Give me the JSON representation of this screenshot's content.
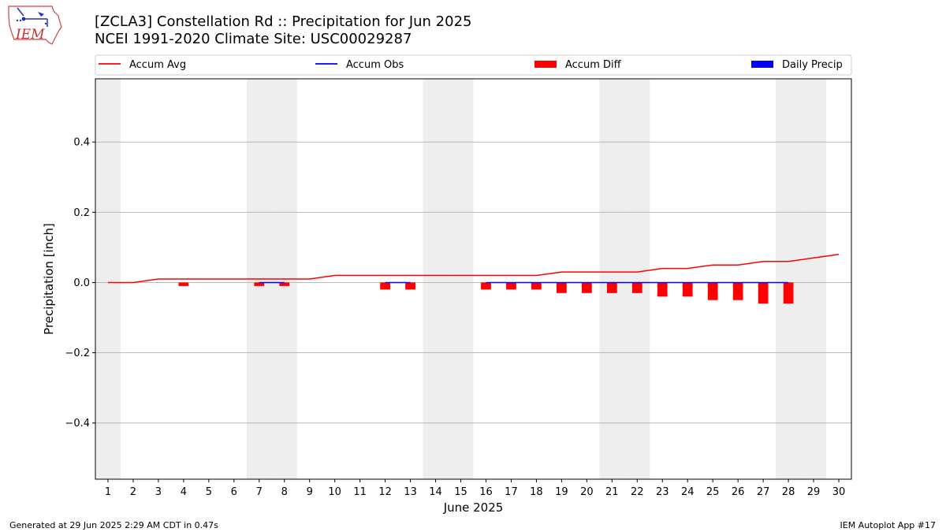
{
  "header": {
    "title_line1": "[ZCLA3] Constellation Rd :: Precipitation for Jun 2025",
    "title_line2": "NCEI 1991-2020 Climate Site: USC00029287",
    "logo_text": "IEM"
  },
  "footer": {
    "generated": "Generated at 29 Jun 2025 2:29 AM CDT in 0.47s",
    "app": "IEM Autoplot App #17"
  },
  "chart_data": {
    "type": "bar",
    "xlabel": "June 2025",
    "ylabel": "Precipitation [inch]",
    "xlim": [
      0.5,
      30.5
    ],
    "ylim": [
      -0.56,
      0.58
    ],
    "yticks": [
      -0.4,
      -0.2,
      0.0,
      0.2,
      0.4
    ],
    "ytick_labels": [
      "−0.4",
      "−0.2",
      "0.0",
      "0.2",
      "0.4"
    ],
    "x": [
      1,
      2,
      3,
      4,
      5,
      6,
      7,
      8,
      9,
      10,
      11,
      12,
      13,
      14,
      15,
      16,
      17,
      18,
      19,
      20,
      21,
      22,
      23,
      24,
      25,
      26,
      27,
      28,
      29,
      30
    ],
    "weekend_days": [
      1,
      7,
      8,
      14,
      15,
      21,
      22,
      28,
      29
    ],
    "grid": "y",
    "legend_placement": "top",
    "colors": {
      "accum_avg": "#ff0000",
      "accum_obs": "#0000ff",
      "accum_diff": "#ff0000",
      "daily_precip": "#0000ff",
      "weekend": "#eeeeee"
    },
    "series": [
      {
        "name": "Accum Avg",
        "kind": "line",
        "values": [
          0.0,
          0.0,
          0.01,
          0.01,
          0.01,
          0.01,
          0.01,
          0.01,
          0.01,
          0.02,
          0.02,
          0.02,
          0.02,
          0.02,
          0.02,
          0.02,
          0.02,
          0.02,
          0.03,
          0.03,
          0.03,
          0.03,
          0.04,
          0.04,
          0.05,
          0.05,
          0.06,
          0.06,
          0.07,
          0.08
        ]
      },
      {
        "name": "Accum Obs",
        "kind": "line",
        "values": [
          null,
          null,
          null,
          null,
          null,
          null,
          0.0,
          0.0,
          null,
          null,
          null,
          0.0,
          0.0,
          null,
          null,
          0.0,
          0.0,
          0.0,
          0.0,
          0.0,
          0.0,
          0.0,
          0.0,
          0.0,
          0.0,
          0.0,
          0.0,
          0.0,
          null,
          null
        ]
      },
      {
        "name": "Accum Diff",
        "kind": "bar",
        "values": [
          null,
          null,
          null,
          -0.01,
          null,
          null,
          -0.01,
          -0.01,
          null,
          null,
          null,
          -0.02,
          -0.02,
          null,
          null,
          -0.02,
          -0.02,
          -0.02,
          -0.03,
          -0.03,
          -0.03,
          -0.03,
          -0.04,
          -0.04,
          -0.05,
          -0.05,
          -0.06,
          -0.06,
          null,
          null
        ]
      },
      {
        "name": "Daily Precip",
        "kind": "bar",
        "values": [
          null,
          null,
          null,
          null,
          null,
          null,
          0,
          0,
          null,
          null,
          null,
          0,
          0,
          null,
          null,
          0,
          0,
          0,
          0,
          0,
          0,
          0,
          0,
          0,
          0,
          0,
          0,
          0,
          null,
          null
        ]
      }
    ]
  }
}
